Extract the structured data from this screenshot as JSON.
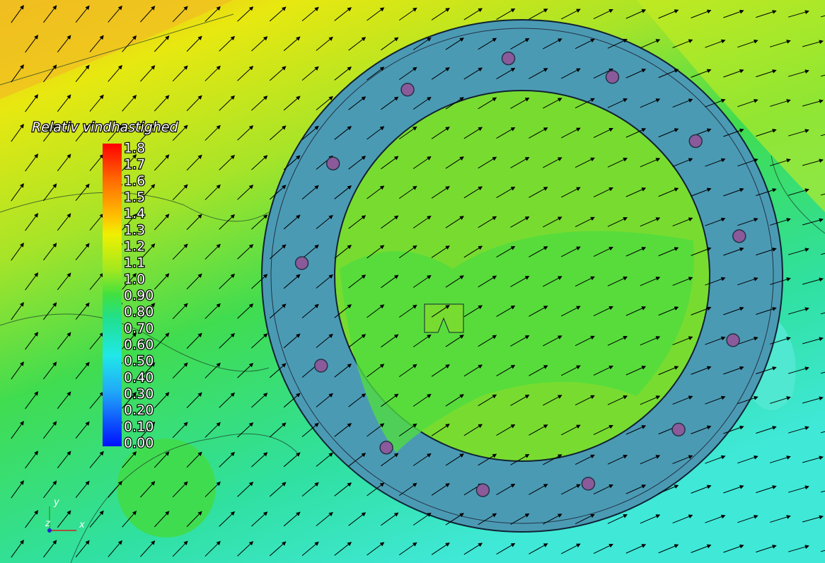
{
  "legend": {
    "title": "Relativ vindhastighed",
    "labels": [
      "1.8",
      "1.7",
      "1.6",
      "1.5",
      "1.4",
      "1.3",
      "1.2",
      "1.1",
      "1.0",
      "0.90",
      "0.80",
      "0.70",
      "0.60",
      "0.50",
      "0.40",
      "0.30",
      "0.20",
      "0.10",
      "0.00"
    ]
  },
  "axes": {
    "x": "x",
    "y": "y",
    "z": "z"
  }
}
